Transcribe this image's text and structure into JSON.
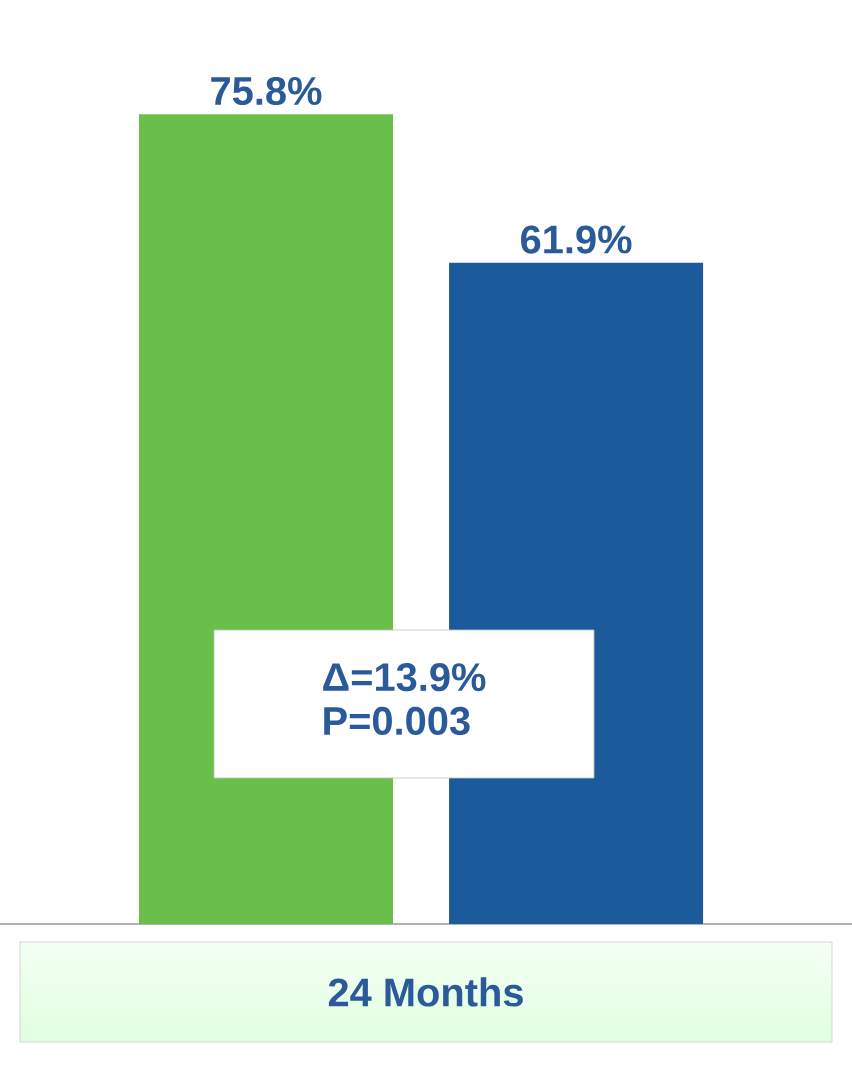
{
  "chart_data": {
    "type": "bar",
    "xlabel": "24 Months",
    "categories": [
      null,
      null
    ],
    "values": [
      75.8,
      61.9
    ],
    "colors": [
      "#6abf4b",
      "#1b5a9b"
    ],
    "value_labels": [
      "75.8%",
      "61.9%"
    ],
    "annotations": [
      "Δ=13.9%",
      "P=0.003"
    ]
  }
}
